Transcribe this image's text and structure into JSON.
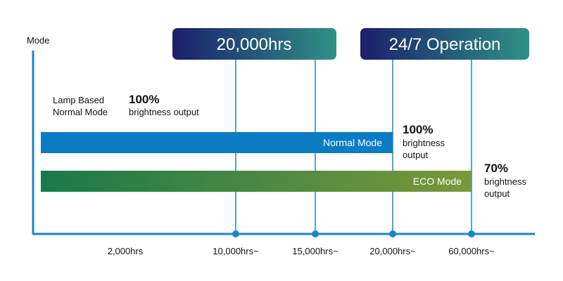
{
  "axis": {
    "y_label": "Mode",
    "x_labels": [
      "2,000hrs",
      "10,000hrs~",
      "15,000hrs~",
      "20,000hrs~",
      "60,000hrs~"
    ]
  },
  "banners": [
    "20,000hrs",
    "24/7 Operation"
  ],
  "note": {
    "lines": [
      "Lamp Based",
      "Normal Mode"
    ],
    "percent": "100%",
    "caption": "brightness output"
  },
  "bars": [
    {
      "label": "Normal Mode",
      "percent": "100%",
      "caption": [
        "brightness",
        "output"
      ]
    },
    {
      "label": "ECO Mode",
      "percent": "70%",
      "caption": [
        "brightness",
        "output"
      ]
    }
  ]
}
